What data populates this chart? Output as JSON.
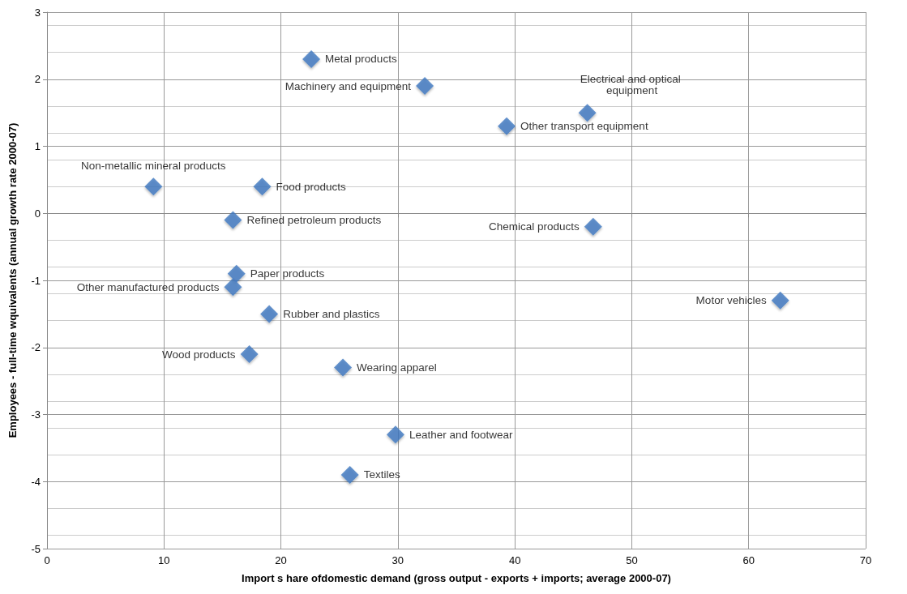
{
  "chart_data": {
    "type": "scatter",
    "xlabel": "Import s hare ofdomestic demand (gross output - exports + imports; average 2000-07)",
    "ylabel": "Employees - full-time wquivalents (annual growth rate 2000-07)",
    "xlim": [
      0,
      70
    ],
    "xticks": [
      0,
      10,
      20,
      30,
      40,
      50,
      60,
      70
    ],
    "ylim": [
      -5,
      3
    ],
    "yticks": [
      -5,
      -4,
      -3,
      -2,
      -1,
      0,
      1,
      2,
      3
    ],
    "grid": true,
    "marker": "diamond",
    "series": [
      {
        "name": "Metal products",
        "color": "#3f78c0",
        "x": [
          22.6
        ],
        "values": [
          2.3
        ]
      },
      {
        "name": "Machinery and equipment",
        "color": "#3f78c0",
        "x": [
          32.3
        ],
        "values": [
          1.9
        ]
      },
      {
        "name": "Other transport equipment",
        "color": "#3f78c0",
        "x": [
          39.3
        ],
        "values": [
          1.3
        ]
      },
      {
        "name": "Electrical and optical equipment",
        "color": "#3f78c0",
        "x": [
          46.2
        ],
        "values": [
          1.5
        ]
      },
      {
        "name": "Non-metallic mineral products",
        "color": "#3f78c0",
        "x": [
          9.1
        ],
        "values": [
          0.4
        ]
      },
      {
        "name": "Food products",
        "color": "#3f78c0",
        "x": [
          18.4
        ],
        "values": [
          0.4
        ]
      },
      {
        "name": "Refined petroleum products",
        "color": "#3f78c0",
        "x": [
          15.9
        ],
        "values": [
          -0.1
        ]
      },
      {
        "name": "Chemical products",
        "color": "#3f78c0",
        "x": [
          46.7
        ],
        "values": [
          -0.2
        ]
      },
      {
        "name": "Paper products",
        "color": "#3f78c0",
        "x": [
          16.2
        ],
        "values": [
          -0.9
        ]
      },
      {
        "name": "Other manufactured products",
        "color": "#3f78c0",
        "x": [
          15.9
        ],
        "values": [
          -1.1
        ]
      },
      {
        "name": "Motor vehicles",
        "color": "#3f78c0",
        "x": [
          62.7
        ],
        "values": [
          -1.3
        ]
      },
      {
        "name": "Rubber and plastics",
        "color": "#3f78c0",
        "x": [
          19.0
        ],
        "values": [
          -1.5
        ]
      },
      {
        "name": "Wood products",
        "color": "#3f78c0",
        "x": [
          17.3
        ],
        "values": [
          -2.1
        ]
      },
      {
        "name": "Wearing apparel",
        "color": "#3f78c0",
        "x": [
          25.3
        ],
        "values": [
          -2.3
        ]
      },
      {
        "name": "Leather and footwear",
        "color": "#3f78c0",
        "x": [
          29.8
        ],
        "values": [
          -3.3
        ]
      },
      {
        "name": "Textiles",
        "color": "#3f78c0",
        "x": [
          25.9
        ],
        "values": [
          -3.9
        ]
      }
    ]
  }
}
